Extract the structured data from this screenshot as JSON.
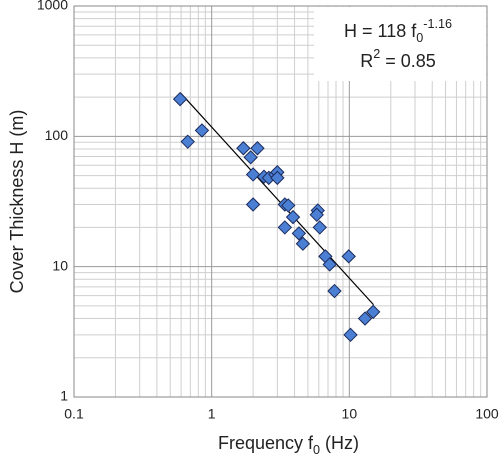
{
  "chart_data": {
    "type": "scatter",
    "x_scale": "log",
    "y_scale": "log",
    "x_label": [
      {
        "text": "Frequency f"
      },
      {
        "text": "0",
        "shift": "sub"
      },
      {
        "text": " (Hz)"
      }
    ],
    "y_label": [
      {
        "text": "Cover Thickness H (m)"
      }
    ],
    "annotation": [
      [
        {
          "text": "H = 118 f"
        },
        {
          "text": "0",
          "shift": "sub"
        },
        {
          "text": "-1.16",
          "shift": "super"
        }
      ],
      [
        {
          "text": "R"
        },
        {
          "text": "2",
          "shift": "super"
        },
        {
          "text": " = 0.85"
        }
      ]
    ],
    "xlim": [
      0.1,
      100
    ],
    "ylim": [
      1,
      1000
    ],
    "xticks": [
      0.1,
      1,
      10,
      100
    ],
    "yticks": [
      1,
      10,
      100,
      1000
    ],
    "xminor": [
      0.2,
      0.3,
      0.4,
      0.5,
      0.6,
      0.7,
      0.8,
      0.9,
      2,
      3,
      4,
      5,
      6,
      7,
      8,
      9,
      20,
      30,
      40,
      50,
      60,
      70,
      80,
      90
    ],
    "yminor": [
      2,
      3,
      4,
      5,
      6,
      7,
      8,
      9,
      20,
      30,
      40,
      50,
      60,
      70,
      80,
      90,
      200,
      300,
      400,
      500,
      600,
      700,
      800,
      900
    ],
    "grid": true,
    "color": "#4a7fd4",
    "x": [
      0.59,
      0.67,
      0.85,
      1.7,
      1.92,
      2.15,
      2.0,
      2.0,
      2.4,
      2.6,
      2.9,
      3.0,
      3.0,
      3.4,
      3.6,
      3.9,
      3.4,
      4.3,
      4.6,
      5.9,
      5.8,
      6.1,
      6.7,
      7.2,
      7.8,
      9.9,
      10.2,
      13,
      14.9
    ],
    "values": [
      193,
      91,
      111,
      81,
      69,
      81,
      51,
      30,
      49,
      48,
      51,
      53,
      48,
      30,
      29.5,
      24,
      20,
      18,
      15,
      27,
      25,
      20,
      12,
      10.4,
      6.5,
      12,
      3,
      4,
      4.5
    ],
    "trend": {
      "x": [
        0.6,
        15
      ],
      "values": [
        213,
        5.1
      ],
      "color": "#000000"
    }
  }
}
